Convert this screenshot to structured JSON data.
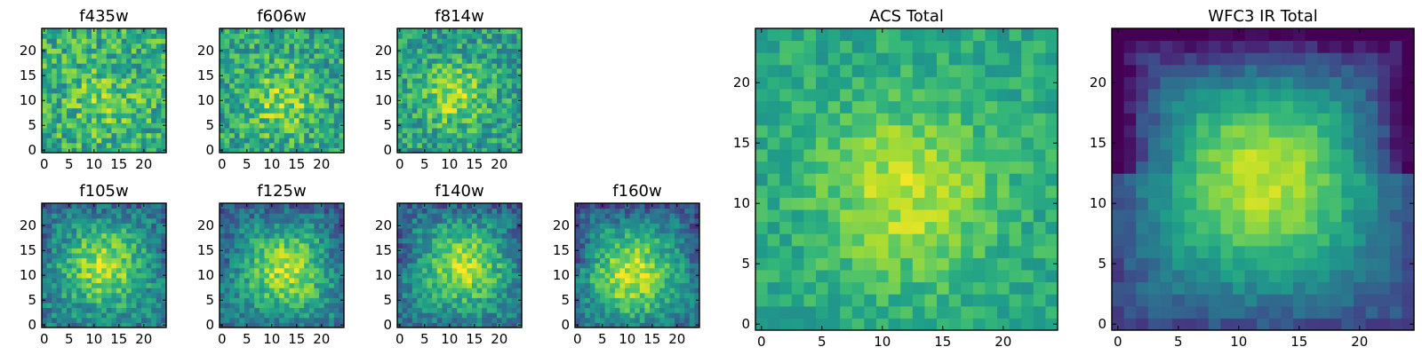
{
  "chart_data": [
    {
      "id": "f435w",
      "type": "heatmap",
      "title": "f435w",
      "grid_size": 25,
      "colormap": "viridis",
      "xticks": [
        0,
        5,
        10,
        15,
        20
      ],
      "yticks": [
        0,
        5,
        10,
        15,
        20
      ],
      "xlim": [
        0,
        24
      ],
      "ylim": [
        0,
        24
      ],
      "profile": {
        "noise": 0.45,
        "peak": 0.15,
        "center": [
          12,
          10
        ],
        "sigma": 5,
        "base": 0.62,
        "vignette": 0.0,
        "seed": 11
      }
    },
    {
      "id": "f606w",
      "type": "heatmap",
      "title": "f606w",
      "grid_size": 25,
      "colormap": "viridis",
      "xticks": [
        0,
        5,
        10,
        15,
        20
      ],
      "yticks": [
        0,
        5,
        10,
        15,
        20
      ],
      "xlim": [
        0,
        24
      ],
      "ylim": [
        0,
        24
      ],
      "profile": {
        "noise": 0.42,
        "peak": 0.25,
        "center": [
          12,
          10
        ],
        "sigma": 5,
        "base": 0.58,
        "vignette": 0.0,
        "seed": 23
      }
    },
    {
      "id": "f814w",
      "type": "heatmap",
      "title": "f814w",
      "grid_size": 25,
      "colormap": "viridis",
      "xticks": [
        0,
        5,
        10,
        15,
        20
      ],
      "yticks": [
        0,
        5,
        10,
        15,
        20
      ],
      "xlim": [
        0,
        24
      ],
      "ylim": [
        0,
        24
      ],
      "profile": {
        "noise": 0.4,
        "peak": 0.3,
        "center": [
          11,
          11
        ],
        "sigma": 4.5,
        "base": 0.56,
        "vignette": 0.0,
        "seed": 37
      }
    },
    {
      "id": "f105w",
      "type": "heatmap",
      "title": "f105w",
      "grid_size": 25,
      "colormap": "viridis",
      "xticks": [
        0,
        5,
        10,
        15,
        20
      ],
      "yticks": [
        0,
        5,
        10,
        15,
        20
      ],
      "xlim": [
        0,
        24
      ],
      "ylim": [
        0,
        24
      ],
      "profile": {
        "noise": 0.34,
        "peak": 0.4,
        "center": [
          12,
          12
        ],
        "sigma": 5.5,
        "base": 0.48,
        "vignette": 0.1,
        "seed": 41
      }
    },
    {
      "id": "f125w",
      "type": "heatmap",
      "title": "f125w",
      "grid_size": 25,
      "colormap": "viridis",
      "xticks": [
        0,
        5,
        10,
        15,
        20
      ],
      "yticks": [
        0,
        5,
        10,
        15,
        20
      ],
      "xlim": [
        0,
        24
      ],
      "ylim": [
        0,
        24
      ],
      "profile": {
        "noise": 0.32,
        "peak": 0.42,
        "center": [
          13,
          11
        ],
        "sigma": 5.5,
        "base": 0.47,
        "vignette": 0.12,
        "seed": 53
      }
    },
    {
      "id": "f140w",
      "type": "heatmap",
      "title": "f140w",
      "grid_size": 25,
      "colormap": "viridis",
      "xticks": [
        0,
        5,
        10,
        15,
        20
      ],
      "yticks": [
        0,
        5,
        10,
        15,
        20
      ],
      "xlim": [
        0,
        24
      ],
      "ylim": [
        0,
        24
      ],
      "profile": {
        "noise": 0.32,
        "peak": 0.42,
        "center": [
          13,
          12
        ],
        "sigma": 5.5,
        "base": 0.47,
        "vignette": 0.12,
        "seed": 67
      }
    },
    {
      "id": "f160w",
      "type": "heatmap",
      "title": "f160w",
      "grid_size": 25,
      "colormap": "viridis",
      "xticks": [
        0,
        5,
        10,
        15,
        20
      ],
      "yticks": [
        0,
        5,
        10,
        15,
        20
      ],
      "xlim": [
        0,
        24
      ],
      "ylim": [
        0,
        24
      ],
      "profile": {
        "noise": 0.3,
        "peak": 0.45,
        "center": [
          11,
          10
        ],
        "sigma": 6,
        "base": 0.46,
        "vignette": 0.15,
        "seed": 79
      }
    },
    {
      "id": "acs_total",
      "type": "heatmap",
      "title": "ACS Total",
      "grid_size": 25,
      "colormap": "viridis",
      "xticks": [
        0,
        5,
        10,
        15,
        20
      ],
      "yticks": [
        0,
        5,
        10,
        15,
        20
      ],
      "xlim": [
        0,
        24
      ],
      "ylim": [
        0,
        24
      ],
      "profile": {
        "noise": 0.22,
        "peak": 0.3,
        "center": [
          12,
          11
        ],
        "sigma": 5,
        "base": 0.6,
        "vignette": 0.0,
        "seed": 97
      }
    },
    {
      "id": "wfc3_ir_total",
      "type": "heatmap",
      "title": "WFC3 IR Total",
      "grid_size": 25,
      "colormap": "viridis",
      "xticks": [
        0,
        5,
        10,
        15,
        20
      ],
      "yticks": [
        0,
        5,
        10,
        15,
        20
      ],
      "xlim": [
        0,
        24
      ],
      "ylim": [
        0,
        24
      ],
      "profile": {
        "noise": 0.14,
        "peak": 0.5,
        "center": [
          12,
          12
        ],
        "sigma": 6,
        "base": 0.4,
        "vignette": 0.3,
        "seed": 113
      }
    }
  ]
}
